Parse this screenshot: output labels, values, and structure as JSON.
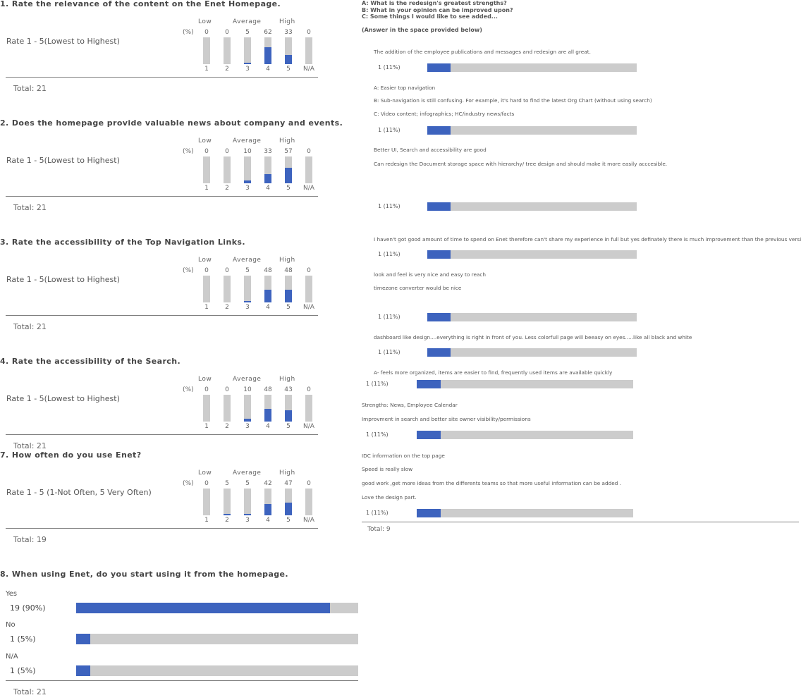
{
  "survey": {
    "levels": {
      "low": "Low",
      "average": "Average",
      "high": "High"
    },
    "pct_label": "(%)",
    "x_labels": [
      "1",
      "2",
      "3",
      "4",
      "5",
      "N/A"
    ],
    "rating_questions": [
      {
        "title": "1. Rate the relevance of the content on the Enet Homepage.",
        "rate_label": "Rate 1 - 5(Lowest to Highest)",
        "percents": [
          0,
          0,
          5,
          62,
          33,
          0
        ],
        "total": "Total: 21"
      },
      {
        "title": "2. Does the homepage provide valuable news about company and events.",
        "rate_label": "Rate 1 - 5(Lowest to Highest)",
        "percents": [
          0,
          0,
          10,
          33,
          57,
          0
        ],
        "total": "Total: 21"
      },
      {
        "title": "3. Rate the accessibility of the Top Navigation Links.",
        "rate_label": "Rate 1 - 5(Lowest to Highest)",
        "percents": [
          0,
          0,
          5,
          48,
          48,
          0
        ],
        "total": "Total: 21"
      },
      {
        "title": "4. Rate the accessibility of the Search.",
        "rate_label": "Rate 1 - 5(Lowest to Highest)",
        "percents": [
          0,
          0,
          10,
          48,
          43,
          0
        ],
        "total": "Total: 21"
      },
      {
        "title": "7. How often do you use Enet?",
        "rate_label": "Rate 1 - 5 (1-Not Often, 5 Very Often)",
        "percents": [
          0,
          5,
          5,
          42,
          47,
          0
        ],
        "total": "Total: 19"
      }
    ],
    "q8": {
      "title": "8. When using Enet, do you start using it from the homepage.",
      "options": [
        {
          "label": "Yes",
          "count": "19 (90%)",
          "value": 90
        },
        {
          "label": "No",
          "count": "1 (5%)",
          "value": 5
        },
        {
          "label": "N/A",
          "count": "1 (5%)",
          "value": 5
        }
      ],
      "total": "Total: 21"
    },
    "open_question": {
      "header": [
        "A: What is the redesign's greatest strengths?",
        "B: What in your opinion can be improved upon?",
        "C: Some things I would like to see added...",
        "",
        "(Answer in the space provided below)"
      ],
      "responses": [
        {
          "lines": [
            "The addition of the employee publications and messages and redesign are all great."
          ],
          "count": "1 (11%)",
          "value": 11
        },
        {
          "lines": [
            "A: Easier top navigation",
            "B: Sub-navigation is still confusing.  For example, it's hard to find the latest Org Chart (without using search)",
            "C: Video content; infographics; HC/industry news/facts"
          ],
          "count": "1 (11%)",
          "value": 11
        },
        {
          "lines": [
            "Better UI, Search and accessibility are good",
            "Can redesign the Document storage  space with hierarchy/ tree design and should make it more easily acccesible."
          ],
          "count": "1 (11%)",
          "value": 11
        },
        {
          "lines": [
            "I haven't got good amount of time to spend on Enet therefore can't share my experience in full but yes definately there is much improvement than the previous version."
          ],
          "count": "1 (11%)",
          "value": 11
        },
        {
          "lines": [
            "look and feel is very nice and easy to reach",
            "timezone converter would be nice"
          ],
          "count": "1 (11%)",
          "value": 11
        },
        {
          "lines": [
            "dashboard like design....everything is right in front of you. Less colorfull page will beeasy on eyes.....like all black and white"
          ],
          "count": "1 (11%)",
          "value": 11
        },
        {
          "lines": [
            "A- feels more organized, items are easier to find, frequently used items are available quickly"
          ],
          "count": "1 (11%)",
          "value": 11
        },
        {
          "lines": [
            "Strengths: News, Employee Calendar",
            "Improvment in search and better site owner visibility/permissions"
          ],
          "count": "1 (11%)",
          "value": 11
        },
        {
          "lines": [
            "IDC information on the top page",
            "Speed is really slow",
            "good work ,get more ideas from the differents teams so that more useful information can be added .",
            "Love the design part."
          ],
          "count": "1 (11%)",
          "value": 11
        }
      ],
      "total": "Total: 9"
    }
  },
  "chart_data": [
    {
      "type": "bar",
      "title": "1. Rate the relevance of the content on the Enet Homepage.",
      "categories": [
        "1",
        "2",
        "3",
        "4",
        "5",
        "N/A"
      ],
      "values": [
        0,
        0,
        5,
        62,
        33,
        0
      ],
      "ylabel": "(%)",
      "ylim": [
        0,
        100
      ]
    },
    {
      "type": "bar",
      "title": "2. Does the homepage provide valuable news about company and events.",
      "categories": [
        "1",
        "2",
        "3",
        "4",
        "5",
        "N/A"
      ],
      "values": [
        0,
        0,
        10,
        33,
        57,
        0
      ],
      "ylabel": "(%)",
      "ylim": [
        0,
        100
      ]
    },
    {
      "type": "bar",
      "title": "3. Rate the accessibility of the Top Navigation Links.",
      "categories": [
        "1",
        "2",
        "3",
        "4",
        "5",
        "N/A"
      ],
      "values": [
        0,
        0,
        5,
        48,
        48,
        0
      ],
      "ylabel": "(%)",
      "ylim": [
        0,
        100
      ]
    },
    {
      "type": "bar",
      "title": "4. Rate the accessibility of the Search.",
      "categories": [
        "1",
        "2",
        "3",
        "4",
        "5",
        "N/A"
      ],
      "values": [
        0,
        0,
        10,
        48,
        43,
        0
      ],
      "ylabel": "(%)",
      "ylim": [
        0,
        100
      ]
    },
    {
      "type": "bar",
      "title": "7. How often do you use Enet?",
      "categories": [
        "1",
        "2",
        "3",
        "4",
        "5",
        "N/A"
      ],
      "values": [
        0,
        5,
        5,
        42,
        47,
        0
      ],
      "ylabel": "(%)",
      "ylim": [
        0,
        100
      ]
    },
    {
      "type": "bar",
      "orientation": "horizontal",
      "title": "8. When using Enet, do you start using it from the homepage.",
      "categories": [
        "Yes",
        "No",
        "N/A"
      ],
      "values": [
        90,
        5,
        5
      ],
      "xlim": [
        0,
        100
      ]
    },
    {
      "type": "bar",
      "orientation": "horizontal",
      "categories": [
        "1",
        "2",
        "3",
        "4",
        "5",
        "6",
        "7",
        "8",
        "9"
      ],
      "values": [
        11,
        11,
        11,
        11,
        11,
        11,
        11,
        11,
        11
      ],
      "xlim": [
        0,
        100
      ]
    }
  ],
  "colors": {
    "fill": "#3d63be",
    "track": "#cccccc",
    "rule": "#7f7f7f"
  }
}
